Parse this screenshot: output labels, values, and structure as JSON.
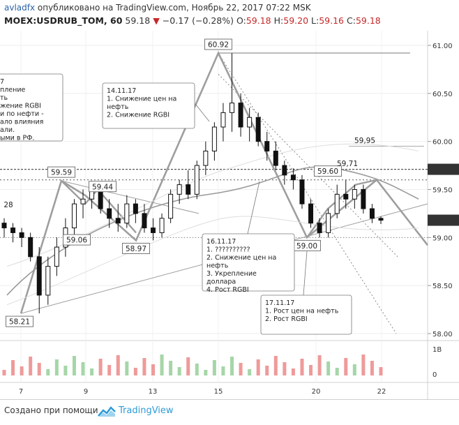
{
  "header": {
    "author": "avladfx",
    "published": "опубликовано на TradingView.com, Ноябрь 22, 2017 07:22 MSK",
    "symbol": "MOEX:USDRUB_TOM, 60",
    "last": "59.18",
    "change": "−0.17 (−0.28%)",
    "o_label": "O:",
    "o_value": "59.18",
    "h_label": "H:",
    "h_value": "59.20",
    "l_label": "L:",
    "l_value": "59.16",
    "c_label": "C:",
    "c_value": "59.18"
  },
  "footer": {
    "made_with": "Создано при помощи",
    "brand": "TradingView"
  },
  "colors": {
    "up": "#26a69a",
    "down": "#ef5350",
    "candle": "#111111",
    "pattern": "#9e9e9e",
    "highlight": "#444444"
  },
  "chart_data": {
    "type": "candlestick",
    "x_ticks": [
      "7",
      "9",
      "13",
      "15",
      "20",
      "22"
    ],
    "y_ticks": [
      "61.00",
      "60.50",
      "60.00",
      "59.50",
      "59.00",
      "58.50",
      "58.00"
    ],
    "ylim": [
      57.95,
      61.1
    ],
    "volume_tick": "1B",
    "volume_zero": "0",
    "price_labels": [
      {
        "text": "59.71",
        "value": 59.71,
        "style": "dark"
      },
      {
        "text": "59.18",
        "value": 59.18,
        "style": "dark"
      }
    ],
    "pivot_labels": [
      "60.92",
      "59.59",
      "59.44",
      "59.06",
      "58.97",
      "59.60",
      "59.00",
      "58.21",
      "59,71",
      "59,95",
      "28"
    ],
    "candles": [
      {
        "t": 0,
        "o": 59.15,
        "h": 59.2,
        "l": 59.0,
        "c": 59.1
      },
      {
        "t": 1,
        "o": 59.1,
        "h": 59.15,
        "l": 58.95,
        "c": 59.05
      },
      {
        "t": 2,
        "o": 59.05,
        "h": 59.1,
        "l": 58.9,
        "c": 59.0
      },
      {
        "t": 3,
        "o": 59.0,
        "h": 59.05,
        "l": 58.75,
        "c": 58.8
      },
      {
        "t": 4,
        "o": 58.8,
        "h": 58.9,
        "l": 58.21,
        "c": 58.4
      },
      {
        "t": 5,
        "o": 58.4,
        "h": 58.8,
        "l": 58.3,
        "c": 58.7
      },
      {
        "t": 6,
        "o": 58.7,
        "h": 59.0,
        "l": 58.6,
        "c": 58.9
      },
      {
        "t": 7,
        "o": 58.9,
        "h": 59.2,
        "l": 58.8,
        "c": 59.1
      },
      {
        "t": 8,
        "o": 59.1,
        "h": 59.4,
        "l": 59.0,
        "c": 59.35
      },
      {
        "t": 9,
        "o": 59.35,
        "h": 59.5,
        "l": 59.2,
        "c": 59.4
      },
      {
        "t": 10,
        "o": 59.4,
        "h": 59.59,
        "l": 59.3,
        "c": 59.5
      },
      {
        "t": 11,
        "o": 59.5,
        "h": 59.55,
        "l": 59.25,
        "c": 59.3
      },
      {
        "t": 12,
        "o": 59.3,
        "h": 59.4,
        "l": 59.1,
        "c": 59.2
      },
      {
        "t": 13,
        "o": 59.2,
        "h": 59.35,
        "l": 59.06,
        "c": 59.15
      },
      {
        "t": 14,
        "o": 59.15,
        "h": 59.44,
        "l": 59.1,
        "c": 59.35
      },
      {
        "t": 15,
        "o": 59.35,
        "h": 59.4,
        "l": 59.15,
        "c": 59.25
      },
      {
        "t": 16,
        "o": 59.25,
        "h": 59.35,
        "l": 59.05,
        "c": 59.1
      },
      {
        "t": 17,
        "o": 59.1,
        "h": 59.2,
        "l": 58.97,
        "c": 59.05
      },
      {
        "t": 18,
        "o": 59.05,
        "h": 59.25,
        "l": 59.0,
        "c": 59.2
      },
      {
        "t": 19,
        "o": 59.2,
        "h": 59.5,
        "l": 59.15,
        "c": 59.45
      },
      {
        "t": 20,
        "o": 59.45,
        "h": 59.6,
        "l": 59.35,
        "c": 59.55
      },
      {
        "t": 21,
        "o": 59.55,
        "h": 59.7,
        "l": 59.4,
        "c": 59.45
      },
      {
        "t": 22,
        "o": 59.45,
        "h": 59.8,
        "l": 59.4,
        "c": 59.75
      },
      {
        "t": 23,
        "o": 59.75,
        "h": 60.0,
        "l": 59.65,
        "c": 59.9
      },
      {
        "t": 24,
        "o": 59.9,
        "h": 60.2,
        "l": 59.8,
        "c": 60.15
      },
      {
        "t": 25,
        "o": 60.15,
        "h": 60.4,
        "l": 60.0,
        "c": 60.3
      },
      {
        "t": 26,
        "o": 60.3,
        "h": 60.92,
        "l": 60.1,
        "c": 60.4
      },
      {
        "t": 27,
        "o": 60.4,
        "h": 60.5,
        "l": 60.05,
        "c": 60.15
      },
      {
        "t": 28,
        "o": 60.15,
        "h": 60.35,
        "l": 60.0,
        "c": 60.25
      },
      {
        "t": 29,
        "o": 60.25,
        "h": 60.3,
        "l": 59.95,
        "c": 60.0
      },
      {
        "t": 30,
        "o": 60.0,
        "h": 60.1,
        "l": 59.8,
        "c": 59.9
      },
      {
        "t": 31,
        "o": 59.9,
        "h": 60.0,
        "l": 59.7,
        "c": 59.75
      },
      {
        "t": 32,
        "o": 59.75,
        "h": 59.8,
        "l": 59.55,
        "c": 59.65
      },
      {
        "t": 33,
        "o": 59.65,
        "h": 59.72,
        "l": 59.5,
        "c": 59.6
      },
      {
        "t": 34,
        "o": 59.6,
        "h": 59.65,
        "l": 59.3,
        "c": 59.35
      },
      {
        "t": 35,
        "o": 59.35,
        "h": 59.4,
        "l": 59.1,
        "c": 59.15
      },
      {
        "t": 36,
        "o": 59.15,
        "h": 59.2,
        "l": 59.0,
        "c": 59.05
      },
      {
        "t": 37,
        "o": 59.05,
        "h": 59.3,
        "l": 59.0,
        "c": 59.25
      },
      {
        "t": 38,
        "o": 59.25,
        "h": 59.55,
        "l": 59.2,
        "c": 59.45
      },
      {
        "t": 39,
        "o": 59.45,
        "h": 59.6,
        "l": 59.3,
        "c": 59.4
      },
      {
        "t": 40,
        "o": 59.4,
        "h": 59.55,
        "l": 59.3,
        "c": 59.5
      },
      {
        "t": 41,
        "o": 59.5,
        "h": 59.55,
        "l": 59.25,
        "c": 59.3
      },
      {
        "t": 42,
        "o": 59.3,
        "h": 59.35,
        "l": 59.15,
        "c": 59.2
      },
      {
        "t": 43,
        "o": 59.2,
        "h": 59.22,
        "l": 59.14,
        "c": 59.18
      }
    ],
    "annotations": [
      "14.11.17",
      "1. Снижение цен на",
      "нефть",
      "2. Снижение RGBI",
      "16.11.17",
      "1. ??????????",
      "2. Снижение цен на",
      "нефть",
      "3. Укрепление",
      "доллара",
      "4. Рост RGBI",
      "17.11.17",
      "1. Рост цен на нефть",
      "2. Рост RGBI",
      "7",
      "пление",
      "ть",
      "жение RGBI",
      "и по нефти -",
      "ало влияния",
      "али.",
      "ыми в РФ."
    ]
  }
}
